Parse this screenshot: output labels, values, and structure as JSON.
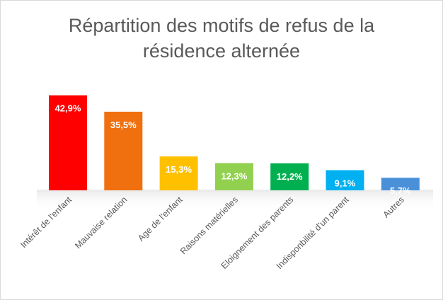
{
  "chart_data": {
    "type": "bar",
    "title": "Répartition des motifs de refus de la\nrésidence alternée",
    "categories": [
      "Intérêt de l'enfant",
      "Mauvaise relation",
      "Age de l'enfant",
      "Raisons matérielles",
      "Eloignement des parents",
      "Indisponbilité d'un parent",
      "Autres"
    ],
    "values": [
      42.9,
      35.5,
      15.3,
      12.3,
      12.2,
      9.1,
      5.7
    ],
    "data_labels": [
      "42,9%",
      "35,5%",
      "15,3%",
      "12,3%",
      "12,2%",
      "9,1%",
      "5,7%"
    ],
    "colors": [
      "#ff0000",
      "#f07010",
      "#ffc000",
      "#92d050",
      "#00b050",
      "#00b0f0",
      "#4a90d9"
    ],
    "xlabel": "",
    "ylabel": "",
    "ylim": [
      0,
      45
    ],
    "grid": false,
    "legend": "none"
  }
}
